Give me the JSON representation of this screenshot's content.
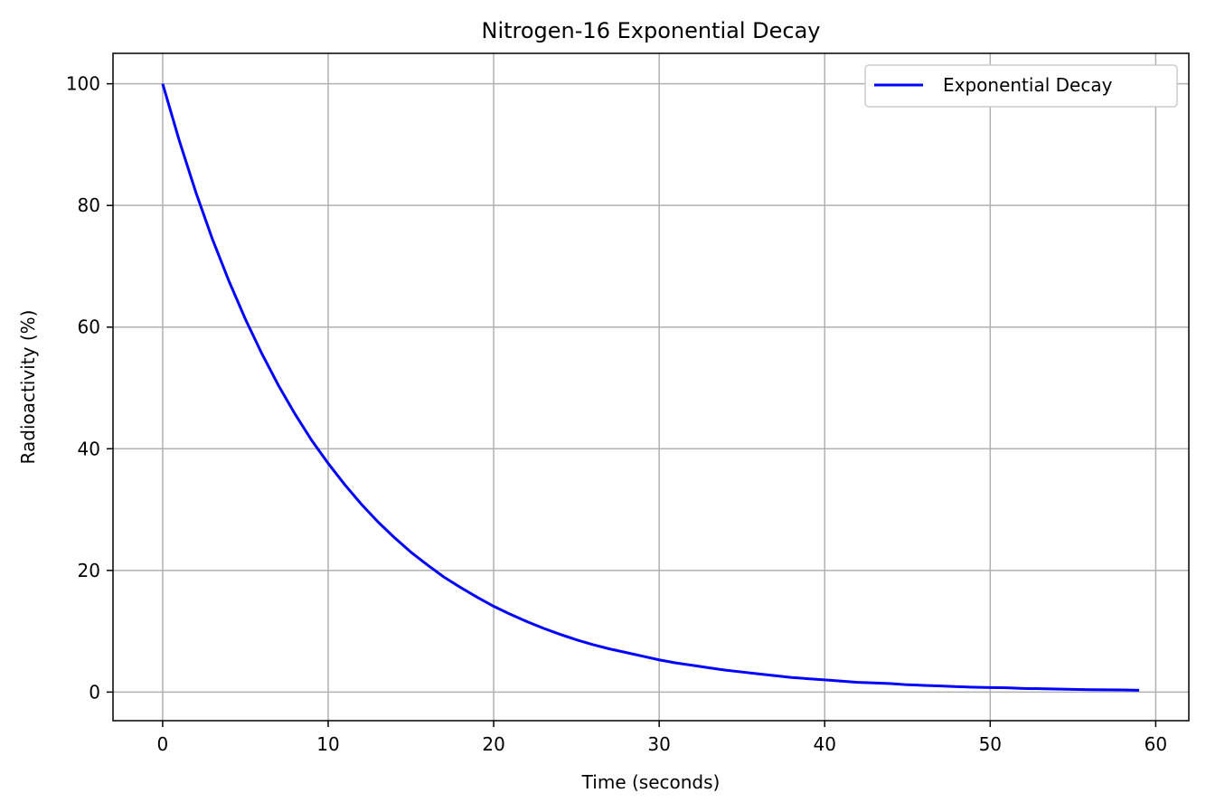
{
  "chart_data": {
    "type": "line",
    "title": "Nitrogen-16 Exponential Decay",
    "xlabel": "Time (seconds)",
    "ylabel": "Radioactivity (%)",
    "xlim": [
      -3,
      62
    ],
    "ylim": [
      -4.7,
      105
    ],
    "xticks": [
      0,
      10,
      20,
      30,
      40,
      50,
      60
    ],
    "yticks": [
      0,
      20,
      40,
      60,
      80,
      100
    ],
    "grid": true,
    "legend_position": "upper right",
    "series": [
      {
        "name": "Exponential Decay",
        "color": "#0000ff",
        "x": [
          0,
          1,
          2,
          3,
          4,
          5,
          6,
          7,
          8,
          9,
          10,
          11,
          12,
          13,
          14,
          15,
          16,
          17,
          18,
          19,
          20,
          21,
          22,
          23,
          24,
          25,
          26,
          27,
          28,
          29,
          30,
          31,
          32,
          33,
          34,
          35,
          36,
          37,
          38,
          39,
          40,
          41,
          42,
          43,
          44,
          45,
          46,
          47,
          48,
          49,
          50,
          51,
          52,
          53,
          54,
          55,
          56,
          57,
          58,
          59
        ],
        "y": [
          100.0,
          90.7,
          82.2,
          74.5,
          67.6,
          61.3,
          55.6,
          50.4,
          45.7,
          41.4,
          37.6,
          34.1,
          30.9,
          28.0,
          25.4,
          23.0,
          20.9,
          18.9,
          17.2,
          15.6,
          14.1,
          12.8,
          11.6,
          10.5,
          9.5,
          8.6,
          7.8,
          7.1,
          6.5,
          5.9,
          5.3,
          4.8,
          4.4,
          4.0,
          3.6,
          3.3,
          3.0,
          2.7,
          2.4,
          2.2,
          2.0,
          1.8,
          1.6,
          1.5,
          1.4,
          1.2,
          1.1,
          1.0,
          0.9,
          0.8,
          0.75,
          0.7,
          0.6,
          0.55,
          0.5,
          0.45,
          0.4,
          0.38,
          0.35,
          0.3
        ]
      }
    ]
  }
}
